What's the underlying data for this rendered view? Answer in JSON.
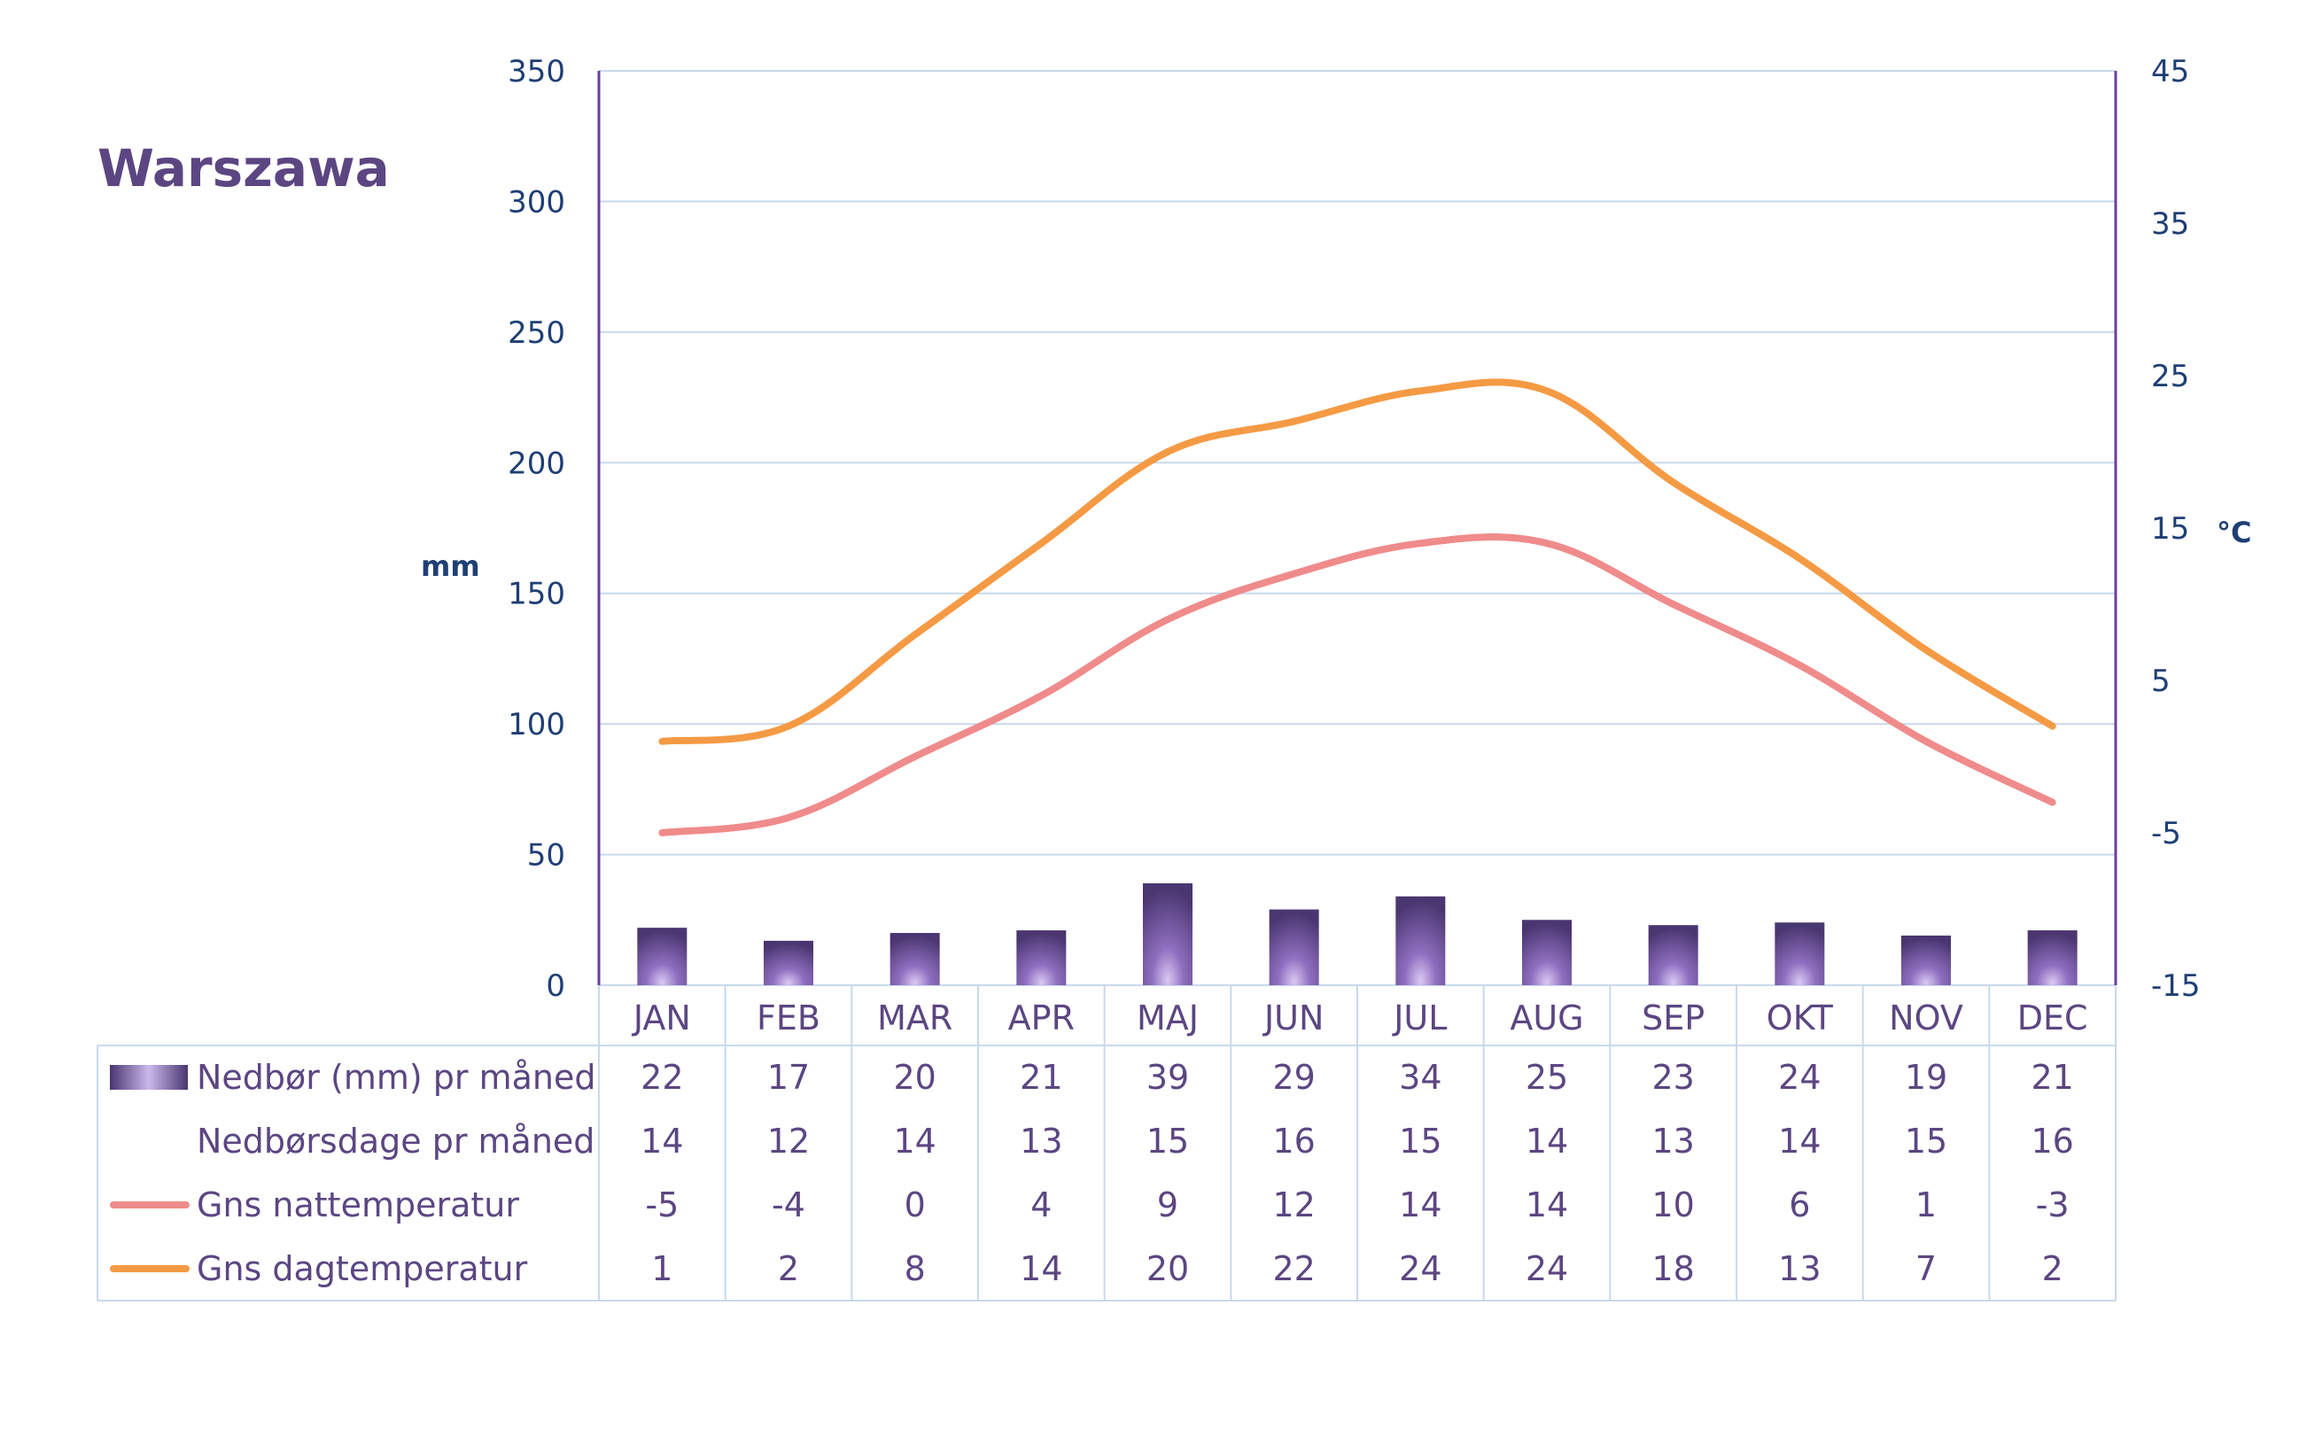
{
  "chart_data": {
    "type": "bar",
    "title": "Warszawa",
    "categories": [
      "JAN",
      "FEB",
      "MAR",
      "APR",
      "MAJ",
      "JUN",
      "JUL",
      "AUG",
      "SEP",
      "OKT",
      "NOV",
      "DEC"
    ],
    "y_left_label": "mm",
    "y_right_label": "°C",
    "y_left_lim": [
      0,
      350
    ],
    "y_right_lim": [
      -15,
      45
    ],
    "y_left_ticks": [
      "0",
      "50",
      "100",
      "150",
      "200",
      "250",
      "300",
      "350"
    ],
    "y_right_ticks": [
      "-15",
      "-5",
      "5",
      "15",
      "25",
      "35",
      "45"
    ],
    "grid": true,
    "series": [
      {
        "name": "Nedbør (mm) pr måned",
        "type": "bar",
        "axis": "left",
        "color": "#5b4682",
        "values": [
          22,
          17,
          20,
          21,
          39,
          29,
          34,
          25,
          23,
          24,
          19,
          21
        ]
      },
      {
        "name": "Nedbørsdage pr måned",
        "type": "table",
        "axis": "none",
        "values": [
          14,
          12,
          14,
          13,
          15,
          16,
          15,
          14,
          13,
          14,
          15,
          16
        ]
      },
      {
        "name": "Gns nattemperatur",
        "type": "line",
        "axis": "right",
        "color": "#f08b8b",
        "values": [
          -5,
          -4,
          0,
          4,
          9,
          12,
          14,
          14,
          10,
          6,
          1,
          -3
        ]
      },
      {
        "name": "Gns dagtemperatur",
        "type": "line",
        "axis": "right",
        "color": "#f59a44",
        "values": [
          1,
          2,
          8,
          14,
          20,
          22,
          24,
          24,
          18,
          13,
          7,
          2
        ]
      }
    ]
  }
}
